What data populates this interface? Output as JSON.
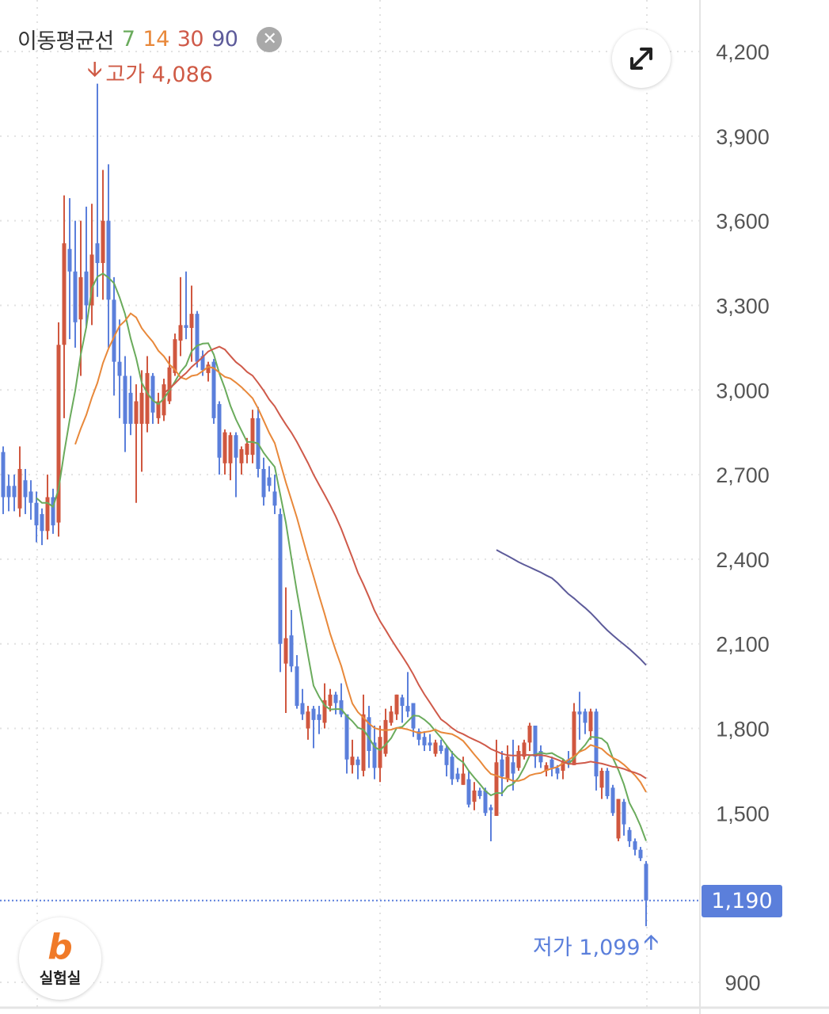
{
  "legend": {
    "title": "이동평균선",
    "periods": [
      "7",
      "14",
      "30",
      "90"
    ]
  },
  "expand_icon": "expand-arrows-icon",
  "close_icon": "close-circle-icon",
  "logo": {
    "glyph": "b",
    "label": "실험실"
  },
  "high_marker": {
    "label": "고가 4,086"
  },
  "low_marker": {
    "label": "저가 1,099"
  },
  "current_price": "1,190",
  "colors": {
    "up": "#d0573f",
    "down": "#5b7fdb",
    "ma7": "#6aab5c",
    "ma14": "#e8883a",
    "ma30": "#cf5a4a",
    "ma90": "#5d5b9a",
    "grid": "#e2e2e2"
  },
  "chart_data": {
    "type": "candlestick",
    "title": "",
    "ylim": [
      900,
      4200
    ],
    "y_ticks": [
      "4,200",
      "3,900",
      "3,600",
      "3,300",
      "3,000",
      "2,700",
      "2,400",
      "2,100",
      "1,800",
      "1,500",
      "900"
    ],
    "y_tick_values": [
      4200,
      3900,
      3600,
      3300,
      3000,
      2700,
      2400,
      2100,
      1800,
      1500,
      900
    ],
    "moving_averages": [
      7,
      14,
      30,
      90
    ],
    "high": 4086,
    "low": 1099,
    "last": 1190,
    "ohlc": [
      [
        2780,
        2800,
        2560,
        2620
      ],
      [
        2660,
        2700,
        2570,
        2620
      ],
      [
        2660,
        2700,
        2570,
        2620
      ],
      [
        2580,
        2800,
        2550,
        2720
      ],
      [
        2680,
        2720,
        2560,
        2620
      ],
      [
        2640,
        2680,
        2540,
        2600
      ],
      [
        2600,
        2640,
        2460,
        2520
      ],
      [
        2560,
        2580,
        2450,
        2500
      ],
      [
        2500,
        2700,
        2470,
        2620
      ],
      [
        2620,
        2650,
        2490,
        2520
      ],
      [
        2530,
        3240,
        2480,
        3160
      ],
      [
        3160,
        3690,
        2900,
        3520
      ],
      [
        3500,
        3680,
        3180,
        3420
      ],
      [
        3420,
        3600,
        3150,
        3240
      ],
      [
        3250,
        3600,
        3050,
        3400
      ],
      [
        3420,
        3650,
        3220,
        3300
      ],
      [
        3300,
        3660,
        3230,
        3480
      ],
      [
        3520,
        4086,
        3330,
        3450
      ],
      [
        3450,
        3780,
        3320,
        3600
      ],
      [
        3600,
        3800,
        3150,
        3320
      ],
      [
        3320,
        3400,
        2980,
        3100
      ],
      [
        3100,
        3250,
        2900,
        3050
      ],
      [
        3050,
        3120,
        2780,
        2880
      ],
      [
        2990,
        3050,
        2840,
        2880
      ],
      [
        2880,
        3020,
        2600,
        2960
      ],
      [
        2880,
        3070,
        2710,
        2990
      ],
      [
        2880,
        3120,
        2850,
        3060
      ],
      [
        3050,
        3060,
        2880,
        2920
      ],
      [
        2900,
        2990,
        2880,
        2960
      ],
      [
        2910,
        3040,
        2890,
        3020
      ],
      [
        2960,
        3120,
        2950,
        3080
      ],
      [
        3060,
        3200,
        3050,
        3180
      ],
      [
        3175,
        3400,
        3120,
        3230
      ],
      [
        3230,
        3420,
        3180,
        3220
      ],
      [
        3220,
        3370,
        3100,
        3270
      ],
      [
        3270,
        3280,
        3080,
        3100
      ],
      [
        3120,
        3140,
        3050,
        3070
      ],
      [
        3060,
        3100,
        3030,
        3090
      ],
      [
        3100,
        3110,
        2880,
        2900
      ],
      [
        2950,
        2960,
        2700,
        2760
      ],
      [
        2740,
        2860,
        2700,
        2850
      ],
      [
        2740,
        2850,
        2680,
        2840
      ],
      [
        2840,
        2850,
        2620,
        2760
      ],
      [
        2740,
        2800,
        2700,
        2790
      ],
      [
        2770,
        2830,
        2740,
        2810
      ],
      [
        2770,
        2930,
        2740,
        2900
      ],
      [
        2900,
        2940,
        2690,
        2720
      ],
      [
        2720,
        2760,
        2590,
        2620
      ],
      [
        2690,
        2730,
        2640,
        2660
      ],
      [
        2640,
        2700,
        2560,
        2590
      ],
      [
        2560,
        2580,
        2000,
        2100
      ],
      [
        2030,
        2300,
        1855,
        2120
      ],
      [
        2130,
        2220,
        2000,
        2020
      ],
      [
        2020,
        2060,
        1870,
        1880
      ],
      [
        1890,
        1940,
        1830,
        1850
      ],
      [
        1800,
        1880,
        1760,
        1860
      ],
      [
        1870,
        1880,
        1730,
        1830
      ],
      [
        1850,
        1880,
        1780,
        1830
      ],
      [
        1820,
        1960,
        1800,
        1900
      ],
      [
        1880,
        1940,
        1860,
        1920
      ],
      [
        1920,
        1930,
        1850,
        1890
      ],
      [
        1900,
        1960,
        1840,
        1850
      ],
      [
        1850,
        1850,
        1640,
        1690
      ],
      [
        1670,
        1760,
        1640,
        1700
      ],
      [
        1690,
        1700,
        1620,
        1670
      ],
      [
        1650,
        1920,
        1630,
        1850
      ],
      [
        1840,
        1880,
        1660,
        1720
      ],
      [
        1750,
        1810,
        1620,
        1660
      ],
      [
        1660,
        1810,
        1610,
        1770
      ],
      [
        1710,
        1870,
        1700,
        1830
      ],
      [
        1820,
        1880,
        1810,
        1860
      ],
      [
        1850,
        1920,
        1830,
        1920
      ],
      [
        1910,
        1920,
        1820,
        1880
      ],
      [
        1880,
        2000,
        1840,
        1860
      ],
      [
        1890,
        1890,
        1770,
        1800
      ],
      [
        1790,
        1800,
        1740,
        1760
      ],
      [
        1770,
        1790,
        1720,
        1740
      ],
      [
        1750,
        1780,
        1720,
        1740
      ],
      [
        1710,
        1760,
        1700,
        1750
      ],
      [
        1740,
        1760,
        1710,
        1720
      ],
      [
        1730,
        1740,
        1630,
        1670
      ],
      [
        1700,
        1720,
        1600,
        1620
      ],
      [
        1640,
        1660,
        1610,
        1620
      ],
      [
        1600,
        1700,
        1600,
        1640
      ],
      [
        1620,
        1650,
        1520,
        1530
      ],
      [
        1540,
        1610,
        1510,
        1580
      ],
      [
        1580,
        1590,
        1550,
        1560
      ],
      [
        1580,
        1590,
        1490,
        1500
      ],
      [
        1520,
        1530,
        1400,
        1510
      ],
      [
        1490,
        1760,
        1490,
        1680
      ],
      [
        1690,
        1720,
        1560,
        1630
      ],
      [
        1620,
        1740,
        1610,
        1700
      ],
      [
        1680,
        1760,
        1580,
        1640
      ],
      [
        1660,
        1740,
        1650,
        1720
      ],
      [
        1700,
        1760,
        1690,
        1750
      ],
      [
        1750,
        1820,
        1720,
        1810
      ],
      [
        1810,
        1810,
        1660,
        1700
      ],
      [
        1720,
        1740,
        1660,
        1680
      ],
      [
        1650,
        1680,
        1630,
        1670
      ],
      [
        1690,
        1700,
        1630,
        1660
      ],
      [
        1660,
        1670,
        1620,
        1640
      ],
      [
        1650,
        1690,
        1620,
        1680
      ],
      [
        1690,
        1720,
        1660,
        1680
      ],
      [
        1670,
        1890,
        1670,
        1860
      ],
      [
        1860,
        1930,
        1760,
        1850
      ],
      [
        1860,
        1870,
        1780,
        1820
      ],
      [
        1790,
        1870,
        1760,
        1860
      ],
      [
        1860,
        1870,
        1580,
        1630
      ],
      [
        1590,
        1660,
        1550,
        1650
      ],
      [
        1650,
        1660,
        1550,
        1560
      ],
      [
        1590,
        1600,
        1490,
        1500
      ],
      [
        1410,
        1550,
        1400,
        1550
      ],
      [
        1540,
        1550,
        1420,
        1460
      ],
      [
        1440,
        1450,
        1380,
        1400
      ],
      [
        1400,
        1410,
        1350,
        1370
      ],
      [
        1370,
        1380,
        1330,
        1340
      ],
      [
        1320,
        1330,
        1099,
        1190
      ]
    ]
  }
}
